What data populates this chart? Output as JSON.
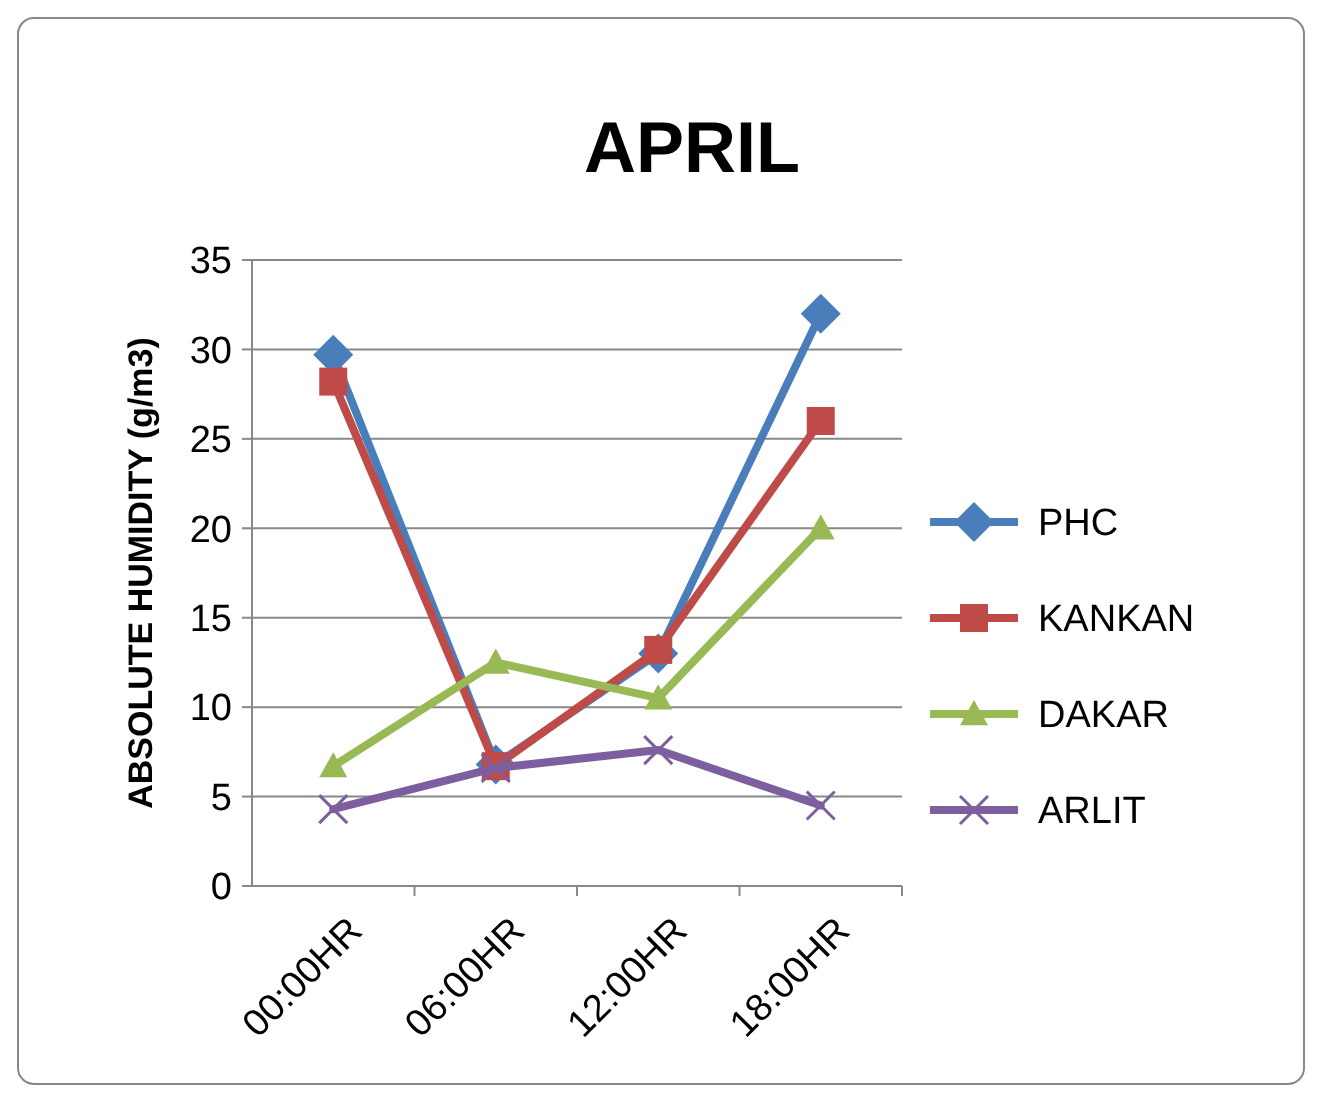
{
  "chart_data": {
    "type": "line",
    "title": "APRIL",
    "ylabel": "ABSOLUTE HUMIDITY (g/m3)",
    "categories": [
      "00:00HR",
      "06:00HR",
      "12:00HR",
      "18:00HR"
    ],
    "series": [
      {
        "name": "PHC",
        "color": "#4a7ebb",
        "marker": "diamond",
        "values": [
          29.7,
          6.8,
          13,
          32
        ]
      },
      {
        "name": "KANKAN",
        "color": "#be4b48",
        "marker": "square",
        "values": [
          28.2,
          6.7,
          13.2,
          26
        ]
      },
      {
        "name": "DAKAR",
        "color": "#98b954",
        "marker": "triangle",
        "values": [
          6.7,
          12.5,
          10.5,
          20
        ]
      },
      {
        "name": "ARLIT",
        "color": "#7d5fa0",
        "marker": "cross",
        "values": [
          4.3,
          6.6,
          7.6,
          4.5
        ]
      }
    ],
    "ylim": [
      0,
      35
    ],
    "yticks": [
      0,
      5,
      10,
      15,
      20,
      25,
      30,
      35
    ],
    "grid": "y",
    "legend": "right"
  }
}
